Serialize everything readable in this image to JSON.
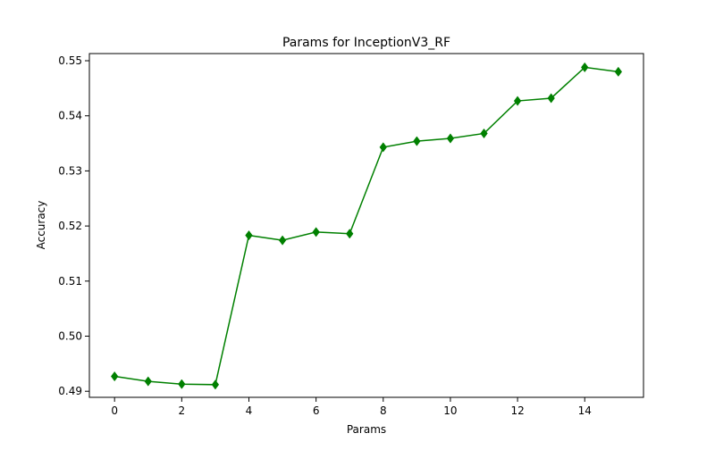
{
  "chart_data": {
    "type": "line",
    "title": "Params for InceptionV3_RF",
    "xlabel": "Params",
    "ylabel": "Accuracy",
    "x": [
      0,
      1,
      2,
      3,
      4,
      5,
      6,
      7,
      8,
      9,
      10,
      11,
      12,
      13,
      14,
      15
    ],
    "series": [
      {
        "values": [
          0.4927,
          0.4918,
          0.4913,
          0.4912,
          0.5183,
          0.5174,
          0.5189,
          0.5186,
          0.5343,
          0.5354,
          0.5359,
          0.5368,
          0.5427,
          0.5432,
          0.5488,
          0.548
        ],
        "color": "#008000",
        "marker": "diamond"
      }
    ],
    "xlim": [
      -0.75,
      15.75
    ],
    "ylim": [
      0.4889,
      0.5513
    ],
    "xticks": [
      0,
      2,
      4,
      6,
      8,
      10,
      12,
      14
    ],
    "xtick_labels": [
      "0",
      "2",
      "4",
      "6",
      "8",
      "10",
      "12",
      "14"
    ],
    "yticks": [
      0.49,
      0.5,
      0.51,
      0.52,
      0.53,
      0.54,
      0.55
    ],
    "ytick_labels": [
      "0.49",
      "0.50",
      "0.51",
      "0.52",
      "0.53",
      "0.54",
      "0.55"
    ],
    "grid": false,
    "legend": "none"
  }
}
